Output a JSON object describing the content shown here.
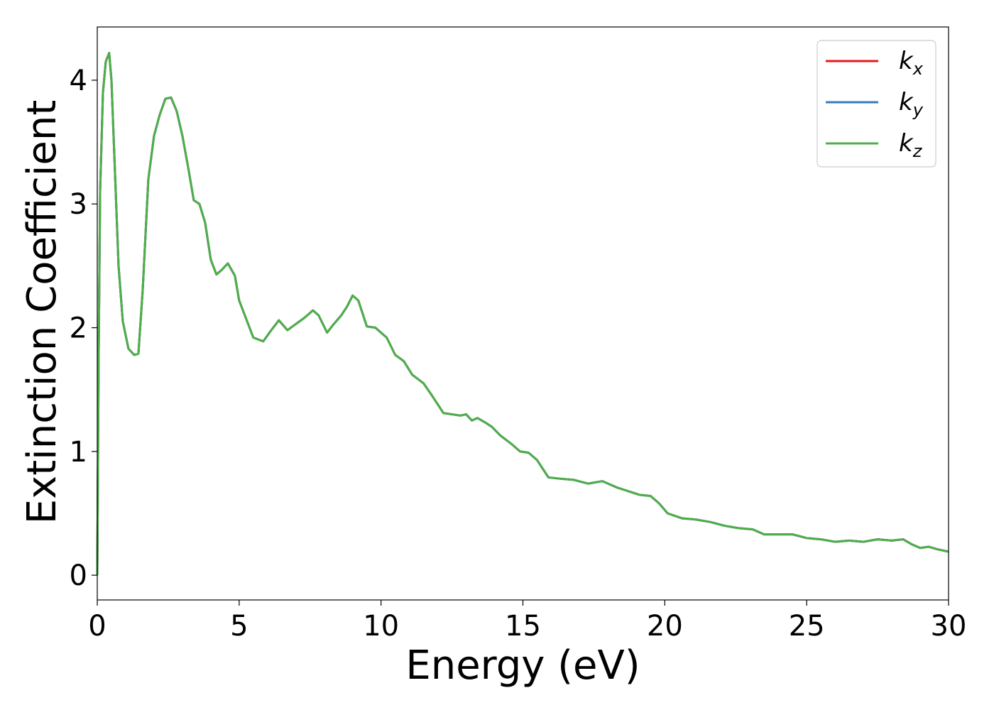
{
  "chart_data": {
    "type": "line",
    "title": "",
    "xlabel": "Energy (eV)",
    "ylabel": "Extinction Coefficient",
    "xlim": [
      0,
      30
    ],
    "ylim": [
      -0.2,
      4.43
    ],
    "xticks": [
      0,
      5,
      10,
      15,
      20,
      25,
      30
    ],
    "yticks": [
      0,
      1,
      2,
      3,
      4
    ],
    "grid": false,
    "legend_position": "top-right",
    "colors": {
      "kx": "#e41a1c",
      "ky": "#377eb8",
      "kz": "#4daf4a"
    },
    "series": [
      {
        "name": "k_x",
        "legend_base": "k",
        "legend_sub": "x",
        "color": "#e41a1c",
        "x": [
          0,
          0.05,
          0.1,
          0.2,
          0.3,
          0.42,
          0.5,
          0.6,
          0.75,
          0.9,
          1.1,
          1.3,
          1.45,
          1.6,
          1.8,
          2.0,
          2.2,
          2.4,
          2.6,
          2.8,
          3.0,
          3.2,
          3.4,
          3.6,
          3.8,
          4.0,
          4.2,
          4.4,
          4.6,
          4.85,
          5.0,
          5.2,
          5.5,
          5.85,
          6.1,
          6.4,
          6.7,
          7.0,
          7.3,
          7.6,
          7.8,
          8.1,
          8.3,
          8.6,
          8.8,
          9.0,
          9.2,
          9.5,
          9.8,
          10.2,
          10.5,
          10.8,
          11.1,
          11.5,
          11.8,
          12.2,
          12.5,
          12.8,
          13.0,
          13.2,
          13.4,
          13.7,
          13.9,
          14.2,
          14.6,
          14.9,
          15.2,
          15.5,
          15.9,
          16.3,
          16.8,
          17.3,
          17.8,
          18.3,
          18.7,
          19.1,
          19.5,
          19.8,
          20.1,
          20.6,
          21.1,
          21.6,
          22.1,
          22.6,
          23.1,
          23.5,
          24.0,
          24.5,
          25.0,
          25.5,
          26.0,
          26.5,
          27.0,
          27.5,
          28.0,
          28.4,
          28.7,
          29.0,
          29.3,
          29.6,
          30.0
        ],
        "values": [
          0.0,
          1.8,
          3.1,
          3.9,
          4.15,
          4.22,
          4.0,
          3.4,
          2.5,
          2.05,
          1.83,
          1.78,
          1.79,
          2.3,
          3.2,
          3.55,
          3.72,
          3.85,
          3.86,
          3.75,
          3.55,
          3.3,
          3.03,
          3.0,
          2.85,
          2.55,
          2.43,
          2.47,
          2.52,
          2.42,
          2.22,
          2.1,
          1.92,
          1.89,
          1.97,
          2.06,
          1.98,
          2.03,
          2.08,
          2.14,
          2.1,
          1.96,
          2.02,
          2.1,
          2.17,
          2.26,
          2.22,
          2.01,
          2.0,
          1.92,
          1.78,
          1.73,
          1.62,
          1.55,
          1.45,
          1.31,
          1.3,
          1.29,
          1.3,
          1.25,
          1.27,
          1.23,
          1.2,
          1.13,
          1.06,
          1.0,
          0.99,
          0.93,
          0.79,
          0.78,
          0.77,
          0.74,
          0.76,
          0.71,
          0.68,
          0.65,
          0.64,
          0.58,
          0.5,
          0.46,
          0.45,
          0.43,
          0.4,
          0.38,
          0.37,
          0.33,
          0.33,
          0.33,
          0.3,
          0.29,
          0.27,
          0.28,
          0.27,
          0.29,
          0.28,
          0.29,
          0.25,
          0.22,
          0.23,
          0.21,
          0.19
        ]
      },
      {
        "name": "k_y",
        "legend_base": "k",
        "legend_sub": "y",
        "color": "#377eb8",
        "x": [
          0,
          0.05,
          0.1,
          0.2,
          0.3,
          0.42,
          0.5,
          0.6,
          0.75,
          0.9,
          1.1,
          1.3,
          1.45,
          1.6,
          1.8,
          2.0,
          2.2,
          2.4,
          2.6,
          2.8,
          3.0,
          3.2,
          3.4,
          3.6,
          3.8,
          4.0,
          4.2,
          4.4,
          4.6,
          4.85,
          5.0,
          5.2,
          5.5,
          5.85,
          6.1,
          6.4,
          6.7,
          7.0,
          7.3,
          7.6,
          7.8,
          8.1,
          8.3,
          8.6,
          8.8,
          9.0,
          9.2,
          9.5,
          9.8,
          10.2,
          10.5,
          10.8,
          11.1,
          11.5,
          11.8,
          12.2,
          12.5,
          12.8,
          13.0,
          13.2,
          13.4,
          13.7,
          13.9,
          14.2,
          14.6,
          14.9,
          15.2,
          15.5,
          15.9,
          16.3,
          16.8,
          17.3,
          17.8,
          18.3,
          18.7,
          19.1,
          19.5,
          19.8,
          20.1,
          20.6,
          21.1,
          21.6,
          22.1,
          22.6,
          23.1,
          23.5,
          24.0,
          24.5,
          25.0,
          25.5,
          26.0,
          26.5,
          27.0,
          27.5,
          28.0,
          28.4,
          28.7,
          29.0,
          29.3,
          29.6,
          30.0
        ],
        "values": [
          0.0,
          1.8,
          3.1,
          3.9,
          4.15,
          4.22,
          4.0,
          3.4,
          2.5,
          2.05,
          1.83,
          1.78,
          1.79,
          2.3,
          3.2,
          3.55,
          3.72,
          3.85,
          3.86,
          3.75,
          3.55,
          3.3,
          3.03,
          3.0,
          2.85,
          2.55,
          2.43,
          2.47,
          2.52,
          2.42,
          2.22,
          2.1,
          1.92,
          1.89,
          1.97,
          2.06,
          1.98,
          2.03,
          2.08,
          2.14,
          2.1,
          1.96,
          2.02,
          2.1,
          2.17,
          2.26,
          2.22,
          2.01,
          2.0,
          1.92,
          1.78,
          1.73,
          1.62,
          1.55,
          1.45,
          1.31,
          1.3,
          1.29,
          1.3,
          1.25,
          1.27,
          1.23,
          1.2,
          1.13,
          1.06,
          1.0,
          0.99,
          0.93,
          0.79,
          0.78,
          0.77,
          0.74,
          0.76,
          0.71,
          0.68,
          0.65,
          0.64,
          0.58,
          0.5,
          0.46,
          0.45,
          0.43,
          0.4,
          0.38,
          0.37,
          0.33,
          0.33,
          0.33,
          0.3,
          0.29,
          0.27,
          0.28,
          0.27,
          0.29,
          0.28,
          0.29,
          0.25,
          0.22,
          0.23,
          0.21,
          0.19
        ]
      },
      {
        "name": "k_z",
        "legend_base": "k",
        "legend_sub": "z",
        "color": "#4daf4a",
        "x": [
          0,
          0.05,
          0.1,
          0.2,
          0.3,
          0.42,
          0.5,
          0.6,
          0.75,
          0.9,
          1.1,
          1.3,
          1.45,
          1.6,
          1.8,
          2.0,
          2.2,
          2.4,
          2.6,
          2.8,
          3.0,
          3.2,
          3.4,
          3.6,
          3.8,
          4.0,
          4.2,
          4.4,
          4.6,
          4.85,
          5.0,
          5.2,
          5.5,
          5.85,
          6.1,
          6.4,
          6.7,
          7.0,
          7.3,
          7.6,
          7.8,
          8.1,
          8.3,
          8.6,
          8.8,
          9.0,
          9.2,
          9.5,
          9.8,
          10.2,
          10.5,
          10.8,
          11.1,
          11.5,
          11.8,
          12.2,
          12.5,
          12.8,
          13.0,
          13.2,
          13.4,
          13.7,
          13.9,
          14.2,
          14.6,
          14.9,
          15.2,
          15.5,
          15.9,
          16.3,
          16.8,
          17.3,
          17.8,
          18.3,
          18.7,
          19.1,
          19.5,
          19.8,
          20.1,
          20.6,
          21.1,
          21.6,
          22.1,
          22.6,
          23.1,
          23.5,
          24.0,
          24.5,
          25.0,
          25.5,
          26.0,
          26.5,
          27.0,
          27.5,
          28.0,
          28.4,
          28.7,
          29.0,
          29.3,
          29.6,
          30.0
        ],
        "values": [
          0.0,
          1.8,
          3.1,
          3.9,
          4.15,
          4.22,
          4.0,
          3.4,
          2.5,
          2.05,
          1.83,
          1.78,
          1.79,
          2.3,
          3.2,
          3.55,
          3.72,
          3.85,
          3.86,
          3.75,
          3.55,
          3.3,
          3.03,
          3.0,
          2.85,
          2.55,
          2.43,
          2.47,
          2.52,
          2.42,
          2.22,
          2.1,
          1.92,
          1.89,
          1.97,
          2.06,
          1.98,
          2.03,
          2.08,
          2.14,
          2.1,
          1.96,
          2.02,
          2.1,
          2.17,
          2.26,
          2.22,
          2.01,
          2.0,
          1.92,
          1.78,
          1.73,
          1.62,
          1.55,
          1.45,
          1.31,
          1.3,
          1.29,
          1.3,
          1.25,
          1.27,
          1.23,
          1.2,
          1.13,
          1.06,
          1.0,
          0.99,
          0.93,
          0.79,
          0.78,
          0.77,
          0.74,
          0.76,
          0.71,
          0.68,
          0.65,
          0.64,
          0.58,
          0.5,
          0.46,
          0.45,
          0.43,
          0.4,
          0.38,
          0.37,
          0.33,
          0.33,
          0.33,
          0.3,
          0.29,
          0.27,
          0.28,
          0.27,
          0.29,
          0.28,
          0.29,
          0.25,
          0.22,
          0.23,
          0.21,
          0.19
        ]
      }
    ]
  }
}
